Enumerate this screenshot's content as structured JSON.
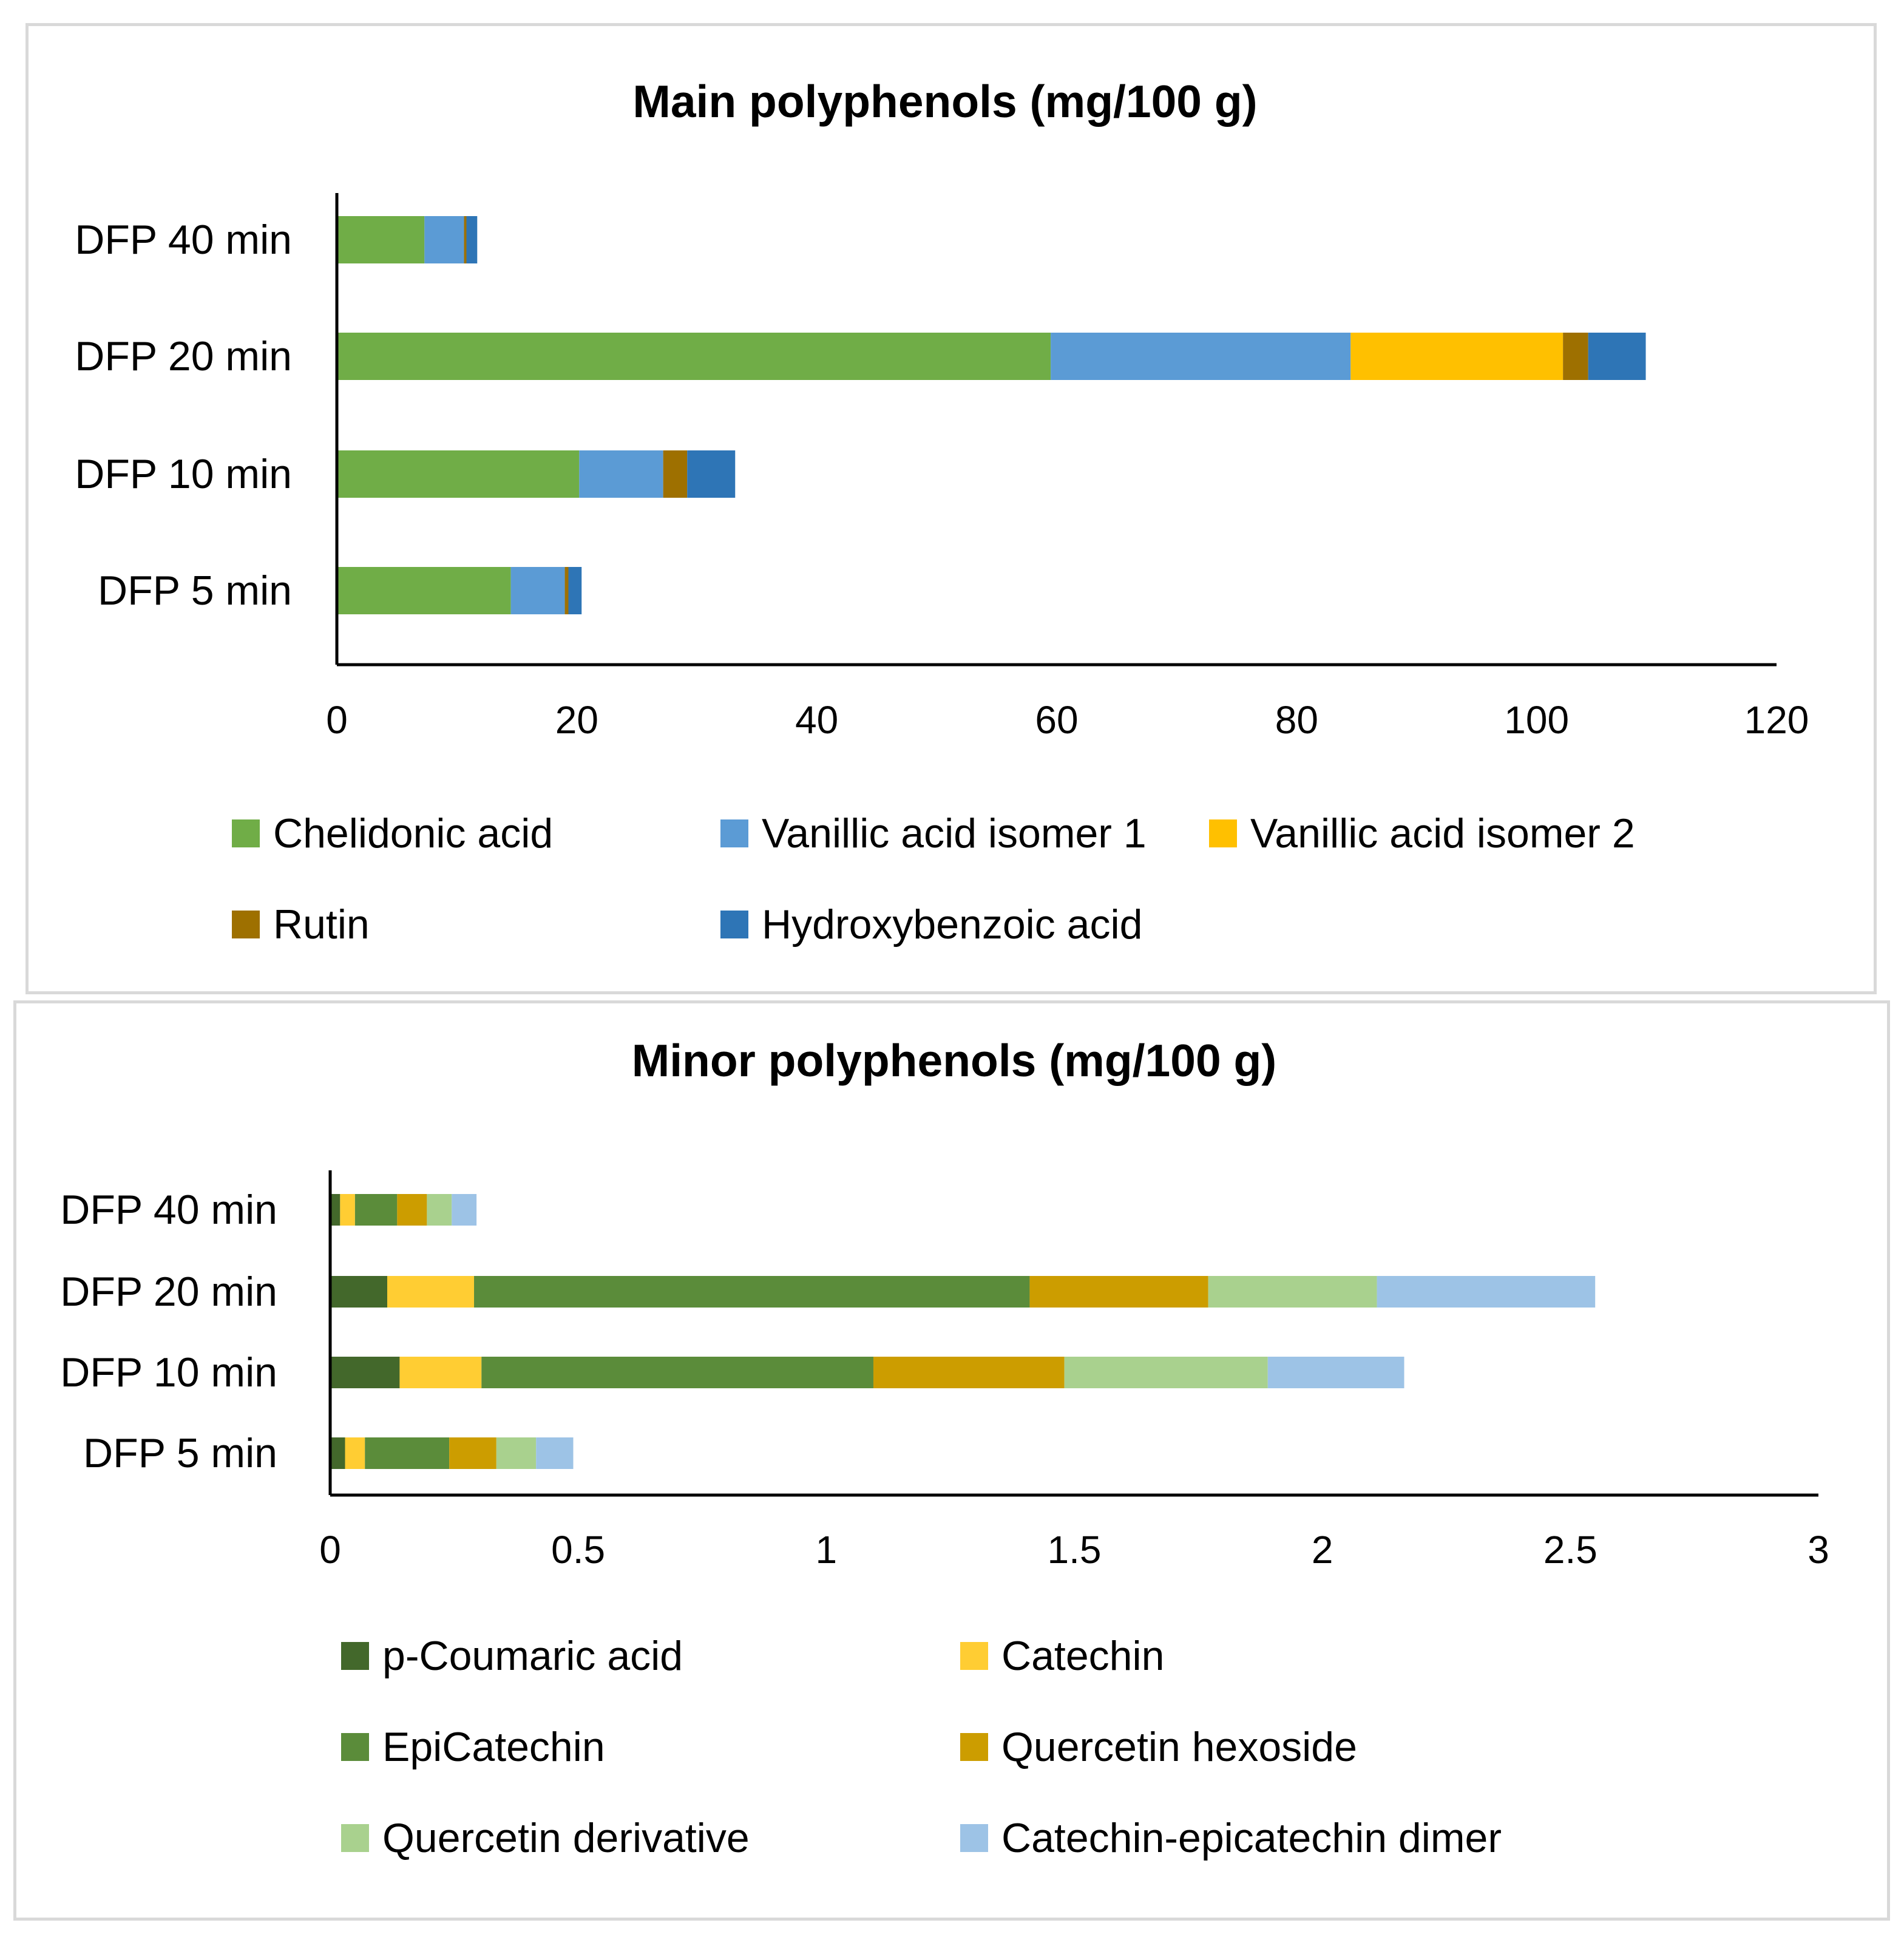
{
  "chart_data": [
    {
      "type": "bar",
      "orientation": "horizontal",
      "stacked": true,
      "title": "Main polyphenols (mg/100 g)",
      "xlabel": "",
      "ylabel": "",
      "categories": [
        "DFP 5 min",
        "DFP 10 min",
        "DFP 20 min",
        "DFP 40 min"
      ],
      "xlim": [
        0,
        120
      ],
      "xticks": [
        "0",
        "20",
        "40",
        "60",
        "80",
        "100",
        "120"
      ],
      "grid": false,
      "legend_position": "bottom",
      "series": [
        {
          "name": "Chelidonic acid",
          "color": "#70ad47",
          "values": [
            14.5,
            20.2,
            59.5,
            7.3
          ]
        },
        {
          "name": "Vanillic acid isomer 1",
          "color": "#5b9bd5",
          "values": [
            4.5,
            7.0,
            25.0,
            3.3
          ]
        },
        {
          "name": "Vanillic acid isomer 2",
          "color": "#ffc000",
          "values": [
            0,
            0,
            17.7,
            0
          ]
        },
        {
          "name": "Rutin",
          "color": "#9e7000",
          "values": [
            0.3,
            2.0,
            2.1,
            0.2
          ]
        },
        {
          "name": "Hydroxybenzoic acid",
          "color": "#2e75b6",
          "values": [
            1.1,
            4.0,
            4.8,
            0.9
          ]
        }
      ]
    },
    {
      "type": "bar",
      "orientation": "horizontal",
      "stacked": true,
      "title": "Minor polyphenols (mg/100 g)",
      "xlabel": "",
      "ylabel": "",
      "categories": [
        "DFP 5 min",
        "DFP 10 min",
        "DFP 20 min",
        "DFP 40 min"
      ],
      "xlim": [
        0,
        3
      ],
      "xticks": [
        "0",
        "0.5",
        "1",
        "1.5",
        "2",
        "2.5",
        "3"
      ],
      "grid": false,
      "legend_position": "bottom",
      "series": [
        {
          "name": "p-Coumaric acid",
          "color": "#43682b",
          "values": [
            0.03,
            0.14,
            0.115,
            0.02
          ]
        },
        {
          "name": "Catechin",
          "color": "#ffcd33",
          "values": [
            0.04,
            0.165,
            0.175,
            0.03
          ]
        },
        {
          "name": "EpiCatechin",
          "color": "#5b8c3a",
          "values": [
            0.17,
            0.79,
            1.12,
            0.085
          ]
        },
        {
          "name": "Quercetin hexoside",
          "color": "#cc9d00",
          "values": [
            0.095,
            0.385,
            0.36,
            0.06
          ]
        },
        {
          "name": "Quercetin derivative",
          "color": "#a9d18e",
          "values": [
            0.08,
            0.41,
            0.34,
            0.05
          ]
        },
        {
          "name": "Catechin-epicatechin dimer",
          "color": "#9dc3e6",
          "values": [
            0.075,
            0.275,
            0.44,
            0.05
          ]
        }
      ]
    }
  ]
}
